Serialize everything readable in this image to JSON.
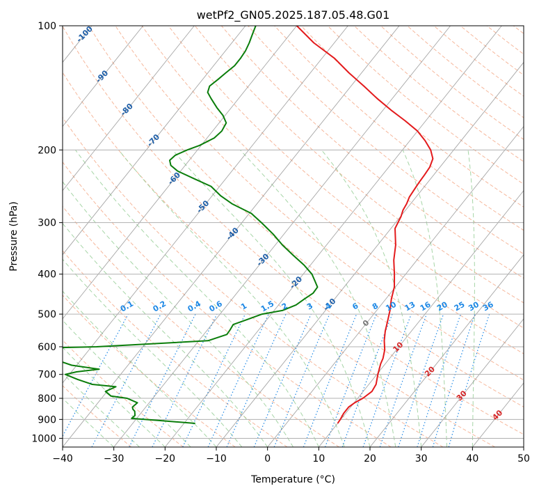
{
  "chart_data": {
    "type": "skew-t",
    "title": "wetPf2_GN05.2025.187.05.48.G01",
    "xlabel": "Temperature (°C)",
    "ylabel": "Pressure (hPa)",
    "xlim": [
      -40,
      50
    ],
    "ylim": [
      1050,
      100
    ],
    "y_scale": "log",
    "grid": true,
    "x_ticks": [
      -40,
      -30,
      -20,
      -10,
      0,
      10,
      20,
      30,
      40,
      50
    ],
    "y_ticks": [
      100,
      200,
      300,
      400,
      500,
      600,
      700,
      800,
      900,
      1000
    ],
    "colors": {
      "temperature": "#e31a1c",
      "dewpoint": "#0a7d0a",
      "dry_adiabat": "#f4a582",
      "moist_adiabat": "#9cd09c",
      "mixing_ratio": "#1e88e5",
      "isotherm": "#888888",
      "frost_label": "#1f5fa8",
      "warm_label": "#d62728"
    },
    "isotherm_labels": [
      "-100",
      "-90",
      "-80",
      "-70",
      "-60",
      "-50",
      "-40",
      "-30",
      "-20",
      "-10",
      "0",
      "10",
      "20",
      "30",
      "40"
    ],
    "mixing_ratio_labels": [
      "0.1",
      "0.2",
      "0.4",
      "0.6",
      "1",
      "1.5",
      "2",
      "3",
      "4",
      "6",
      "8",
      "10",
      "13",
      "16",
      "20",
      "25",
      "30",
      "36"
    ],
    "series": [
      {
        "name": "",
        "role": "temperature",
        "p": [
          920,
          900,
          870,
          840,
          820,
          800,
          770,
          740,
          700,
          660,
          640,
          610,
          580,
          550,
          520,
          490,
          460,
          430,
          400,
          370,
          340,
          310,
          290,
          280,
          270,
          260,
          250,
          240,
          230,
          220,
          210,
          200,
          190,
          180,
          170,
          160,
          150,
          140,
          130,
          120,
          110,
          100
        ],
        "t": [
          10,
          9.9,
          9.6,
          9.6,
          10.1,
          11,
          11.7,
          11.4,
          10.2,
          9.1,
          8.7,
          7.7,
          6.2,
          4.9,
          3.8,
          2.6,
          1.1,
          -0.2,
          -2.2,
          -4.5,
          -6.5,
          -9.2,
          -9.9,
          -10.5,
          -10.8,
          -11.3,
          -11.5,
          -11.7,
          -11.8,
          -12,
          -12.7,
          -14.5,
          -17,
          -20,
          -24,
          -28.5,
          -33,
          -37.5,
          -42.5,
          -47.5,
          -54,
          -60
        ]
      },
      {
        "name": "",
        "role": "dewpoint",
        "p": [
          920,
          905,
          895,
          880,
          860,
          850,
          840,
          820,
          800,
          790,
          770,
          750,
          740,
          720,
          700,
          690,
          680,
          665,
          650,
          630,
          620,
          612,
          600,
          580,
          560,
          545,
          530,
          515,
          500,
          490,
          475,
          460,
          445,
          430,
          415,
          400,
          380,
          360,
          340,
          320,
          300,
          285,
          270,
          258,
          245,
          235,
          225,
          218,
          212,
          206,
          200,
          195,
          187,
          180,
          172,
          165,
          158,
          150,
          145,
          140,
          135,
          130,
          125,
          120,
          115,
          110,
          105,
          100
        ],
        "t": [
          -17.8,
          -25.5,
          -31,
          -30.8,
          -31.5,
          -32.2,
          -32.6,
          -32.3,
          -35,
          -38.5,
          -40.3,
          -39,
          -44,
          -47.6,
          -50.8,
          -49,
          -45,
          -51,
          -54,
          -59.4,
          -62.1,
          -80,
          -49,
          -28.2,
          -25.5,
          -25.6,
          -25.8,
          -23.8,
          -21.8,
          -18.4,
          -16.6,
          -15.9,
          -15.1,
          -15.2,
          -16.7,
          -18.3,
          -21.3,
          -24.9,
          -28.6,
          -32.1,
          -36.2,
          -39.6,
          -44.9,
          -48.4,
          -51.7,
          -56.1,
          -60.6,
          -62.8,
          -63.8,
          -63.5,
          -62,
          -60.3,
          -58.6,
          -58.2,
          -58.6,
          -60.4,
          -62.8,
          -65.4,
          -67,
          -67.6,
          -67,
          -66.5,
          -65.9,
          -65.9,
          -66.1,
          -66.6,
          -67.3,
          -68
        ]
      }
    ]
  }
}
